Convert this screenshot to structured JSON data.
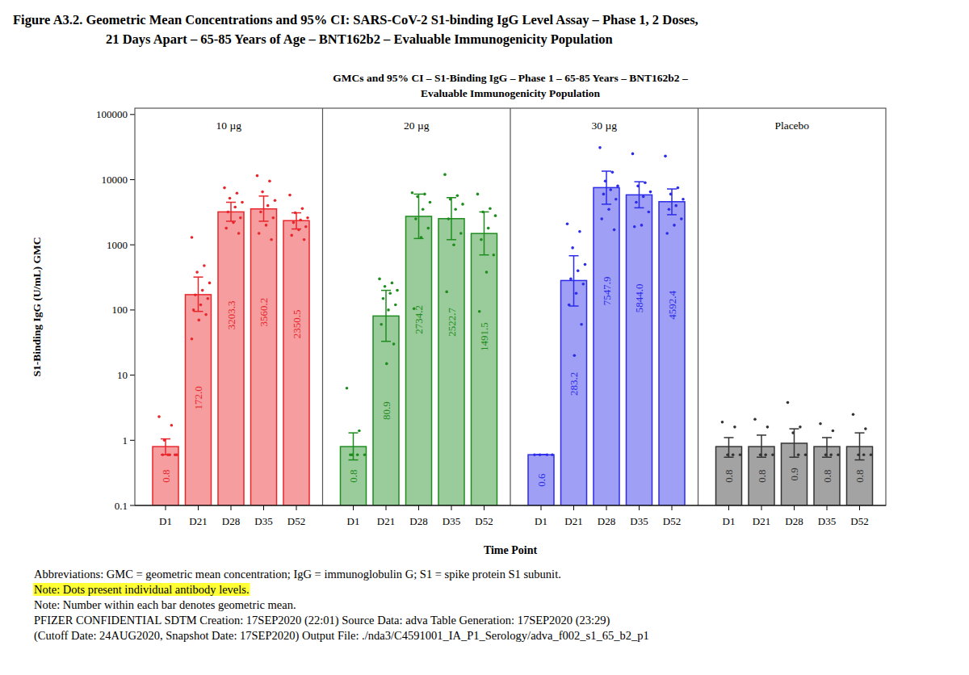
{
  "figure_title": [
    "Figure A3.2.   Geometric Mean Concentrations and 95% CI: SARS-CoV-2 S1-binding IgG Level Assay – Phase 1, 2 Doses,",
    "21 Days Apart – 65-85 Years of Age – BNT162b2 – Evaluable Immunogenicity Population"
  ],
  "notes": [
    "Abbreviations: GMC = geometric mean concentration; IgG = immunoglobulin G; S1 = spike protein S1 subunit.",
    "Note: Dots present individual antibody levels.",
    "Note: Number within each bar denotes geometric mean.",
    "PFIZER CONFIDENTIAL  SDTM Creation: 17SEP2020 (22:01)  Source Data: adva  Table Generation: 17SEP2020 (23:29)",
    "(Cutoff Date: 24AUG2020, Snapshot Date: 17SEP2020) Output File: ./nda3/C4591001_IA_P1_Serology/adva_f002_s1_65_b2_p1"
  ],
  "chart_data": {
    "type": "bar",
    "title": "GMCs and 95% CI – S1-Binding IgG – Phase 1 – 65-85 Years – BNT162b2 –",
    "subtitle": "Evaluable Immunogenicity Population",
    "x_label": "Time Point",
    "y_label": "S1-Binding IgG (U/mL) GMC",
    "log": "y",
    "data_labels": true,
    "categories": [
      "D1",
      "D21",
      "D28",
      "D35",
      "D52"
    ],
    "ylim": [
      0.1,
      125000
    ],
    "yticks": [
      0.1,
      1,
      10,
      100,
      1000,
      10000,
      100000
    ],
    "series": [
      {
        "name": "10 µg",
        "color": "#e8262b",
        "values": [
          0.8,
          172.0,
          3203.3,
          3560.2,
          2350.5
        ],
        "value_labels": [
          "0.8",
          "172.0",
          "3203.3",
          "3560.2",
          "2350.5"
        ],
        "ci_lower": [
          0.6,
          95,
          2300,
          2300,
          1750
        ],
        "ci_upper": [
          1.05,
          320,
          4500,
          5600,
          3100
        ],
        "points": [
          [
            2.3,
            1.7,
            1.0,
            0.6,
            0.6,
            0.6,
            0.6,
            0.6
          ],
          [
            1300,
            480,
            380,
            260,
            200,
            170,
            150,
            120,
            100,
            85,
            70,
            36
          ],
          [
            7500,
            6200,
            5200,
            4500,
            3800,
            3200,
            2600,
            2200,
            1800,
            1500
          ],
          [
            11500,
            9500,
            6500,
            4800,
            4000,
            3200,
            2600,
            2000,
            1500,
            1200
          ],
          [
            5800,
            3600,
            3100,
            2600,
            2400,
            2200,
            1900,
            1700,
            1400,
            1200
          ]
        ]
      },
      {
        "name": "20 µg",
        "color": "#1e8c1e",
        "values": [
          0.8,
          80.9,
          2734.2,
          2522.7,
          1491.5
        ],
        "value_labels": [
          "0.8",
          "80.9",
          "2734.2",
          "2522.7",
          "1491.5"
        ],
        "ci_lower": [
          0.5,
          33,
          1250,
          1200,
          700
        ],
        "ci_upper": [
          1.3,
          200,
          6000,
          5300,
          3200
        ],
        "points": [
          [
            6.3,
            1.4,
            0.6,
            0.6,
            0.6,
            0.6
          ],
          [
            300,
            260,
            230,
            200,
            180,
            150,
            120,
            100,
            60,
            30,
            15
          ],
          [
            6300,
            6000,
            5500,
            4500,
            3500,
            2500,
            1800,
            1300,
            105
          ],
          [
            12000,
            5700,
            5000,
            4200,
            3500,
            2500,
            1500,
            1000,
            190
          ],
          [
            6000,
            3600,
            3200,
            2800,
            1800,
            1200,
            700,
            380,
            95
          ]
        ]
      },
      {
        "name": "30 µg",
        "color": "#2b2bea",
        "values": [
          0.6,
          283.2,
          7547.9,
          5844.0,
          4592.4
        ],
        "value_labels": [
          "0.6",
          "283.2",
          "7547.9",
          "5844.0",
          "4592.4"
        ],
        "ci_lower": [
          0.6,
          115,
          4200,
          3700,
          2900
        ],
        "ci_upper": [
          0.6,
          680,
          13500,
          9300,
          7200
        ],
        "points": [
          [
            0.6,
            0.6,
            0.6,
            0.6
          ],
          [
            2100,
            1600,
            900,
            500,
            400,
            300,
            250,
            180,
            120,
            60,
            20
          ],
          [
            31000,
            13000,
            9500,
            8000,
            7000,
            6000,
            5000,
            3500,
            2500,
            1700
          ],
          [
            25000,
            9000,
            8000,
            6500,
            5500,
            4500,
            3200,
            2000,
            1900
          ],
          [
            23000,
            7500,
            6000,
            5000,
            4000,
            3500,
            2500,
            2000,
            1500
          ]
        ]
      },
      {
        "name": "Placebo",
        "color": "#333333",
        "values": [
          0.8,
          0.8,
          0.9,
          0.8,
          0.8
        ],
        "ci_lower": [
          0.55,
          0.55,
          0.55,
          0.55,
          0.5
        ],
        "ci_upper": [
          1.1,
          1.2,
          1.5,
          1.1,
          1.3
        ],
        "points": [
          [
            1.9,
            1.6,
            0.6,
            0.6,
            0.6
          ],
          [
            2.1,
            1.6,
            0.6,
            0.6,
            0.6
          ],
          [
            3.8,
            1.6,
            1.3,
            0.6,
            0.6
          ],
          [
            1.8,
            1.4,
            0.6,
            0.6,
            0.6
          ],
          [
            2.5,
            1.5,
            0.6,
            0.6,
            0.6
          ]
        ]
      }
    ]
  }
}
